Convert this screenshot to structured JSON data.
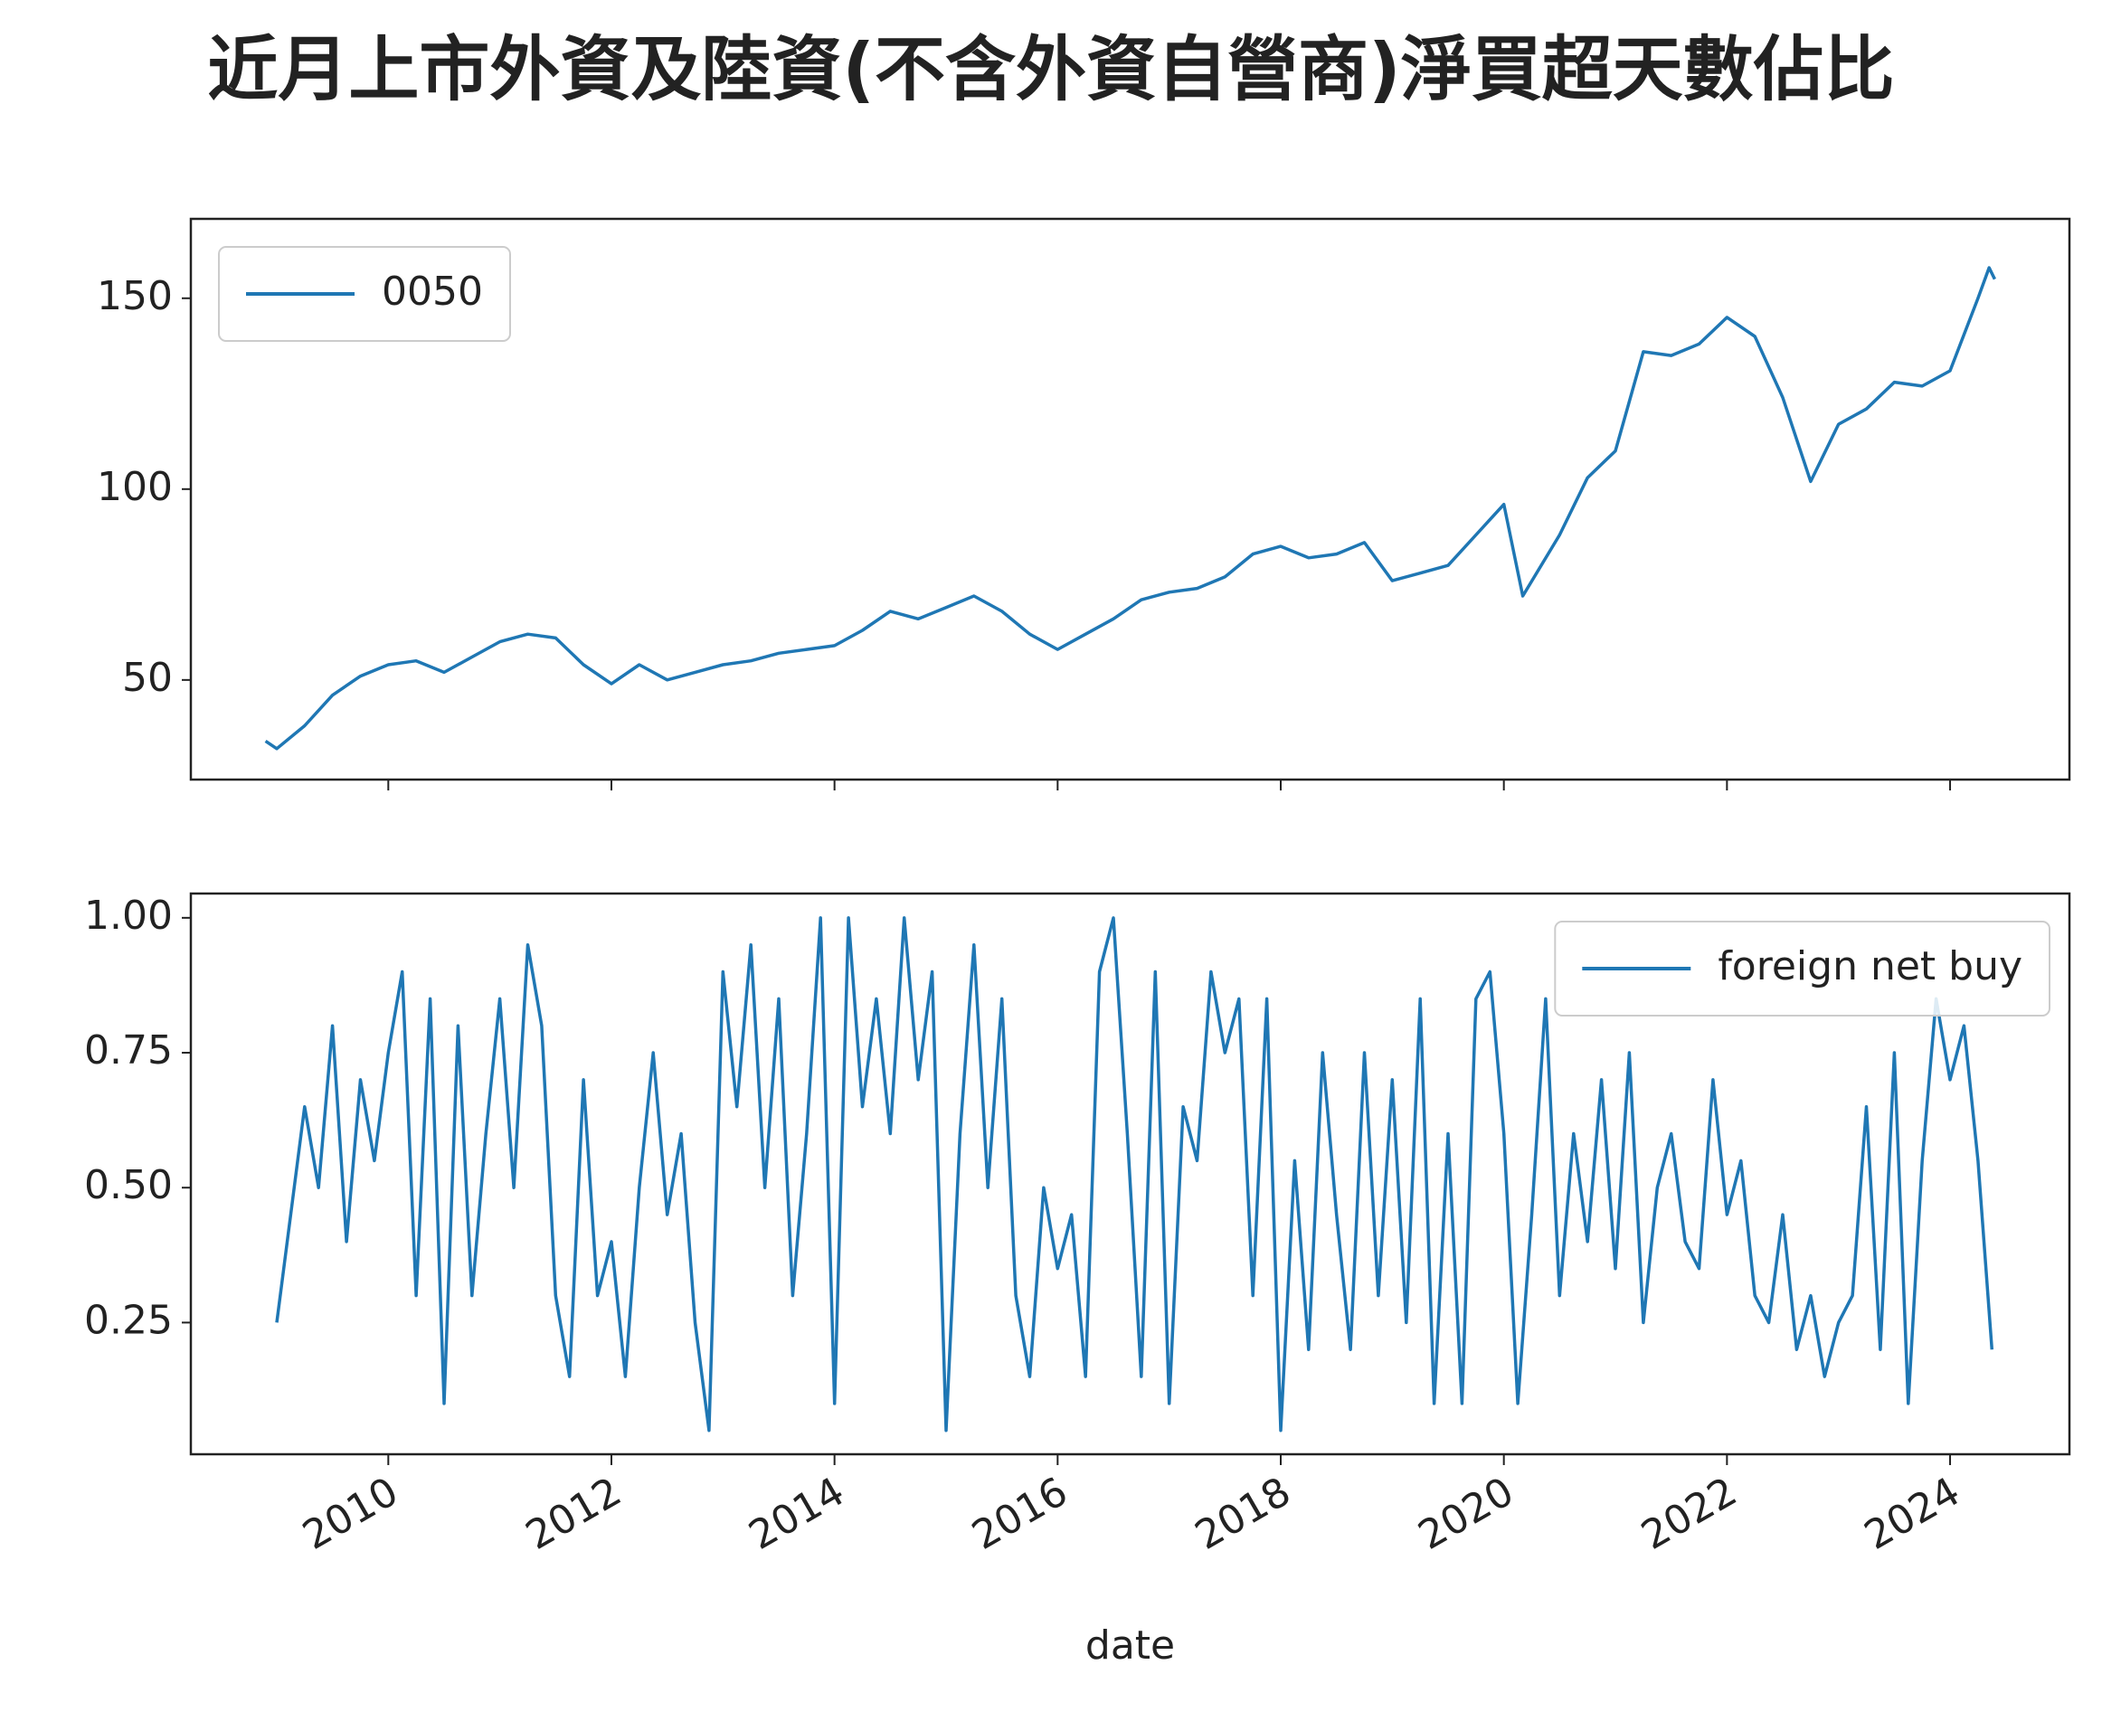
{
  "chart_data": [
    {
      "type": "line",
      "title": "近月上市外資及陸資(不含外資自營商)淨買超天數佔比",
      "x": [
        2008.9,
        2009.0,
        2009.25,
        2009.5,
        2009.75,
        2010.0,
        2010.25,
        2010.5,
        2010.75,
        2011.0,
        2011.25,
        2011.5,
        2011.75,
        2012.0,
        2012.25,
        2012.5,
        2012.75,
        2013.0,
        2013.25,
        2013.5,
        2013.75,
        2014.0,
        2014.25,
        2014.5,
        2014.75,
        2015.0,
        2015.25,
        2015.5,
        2015.75,
        2016.0,
        2016.25,
        2016.5,
        2016.75,
        2017.0,
        2017.25,
        2017.5,
        2017.75,
        2018.0,
        2018.25,
        2018.5,
        2018.75,
        2019.0,
        2019.25,
        2019.5,
        2019.75,
        2020.0,
        2020.17,
        2020.5,
        2020.75,
        2021.0,
        2021.25,
        2021.5,
        2021.75,
        2022.0,
        2022.25,
        2022.5,
        2022.75,
        2023.0,
        2023.25,
        2023.5,
        2023.75,
        2024.0,
        2024.25,
        2024.35,
        2024.4
      ],
      "series": [
        {
          "name": "0050",
          "color": "#1f77b4",
          "values": [
            34,
            32,
            38,
            46,
            51,
            54,
            55,
            52,
            56,
            60,
            62,
            61,
            54,
            49,
            54,
            50,
            52,
            54,
            55,
            57,
            58,
            59,
            63,
            68,
            66,
            69,
            72,
            68,
            62,
            58,
            62,
            66,
            71,
            73,
            74,
            77,
            83,
            85,
            82,
            83,
            86,
            76,
            78,
            80,
            88,
            96,
            72,
            88,
            103,
            110,
            136,
            135,
            138,
            145,
            140,
            124,
            102,
            117,
            121,
            128,
            127,
            131,
            150,
            158,
            155
          ]
        }
      ],
      "xlim": [
        2008.23,
        2025.07
      ],
      "xticks": [
        2010,
        2012,
        2014,
        2016,
        2018,
        2020,
        2022,
        2024
      ],
      "ylim": [
        23.9,
        170.8
      ],
      "yticks": [
        50,
        100,
        150
      ],
      "legend": "upper-left"
    },
    {
      "type": "line",
      "x_label": "date",
      "x": [
        2009.0,
        2009.125,
        2009.25,
        2009.375,
        2009.5,
        2009.625,
        2009.75,
        2009.875,
        2010.0,
        2010.125,
        2010.25,
        2010.375,
        2010.5,
        2010.625,
        2010.75,
        2010.875,
        2011.0,
        2011.125,
        2011.25,
        2011.375,
        2011.5,
        2011.625,
        2011.75,
        2011.875,
        2012.0,
        2012.125,
        2012.25,
        2012.375,
        2012.5,
        2012.625,
        2012.75,
        2012.875,
        2013.0,
        2013.125,
        2013.25,
        2013.375,
        2013.5,
        2013.625,
        2013.75,
        2013.875,
        2014.0,
        2014.125,
        2014.25,
        2014.375,
        2014.5,
        2014.625,
        2014.75,
        2014.875,
        2015.0,
        2015.125,
        2015.25,
        2015.375,
        2015.5,
        2015.625,
        2015.75,
        2015.875,
        2016.0,
        2016.125,
        2016.25,
        2016.375,
        2016.5,
        2016.625,
        2016.75,
        2016.875,
        2017.0,
        2017.125,
        2017.25,
        2017.375,
        2017.5,
        2017.625,
        2017.75,
        2017.875,
        2018.0,
        2018.125,
        2018.25,
        2018.375,
        2018.5,
        2018.625,
        2018.75,
        2018.875,
        2019.0,
        2019.125,
        2019.25,
        2019.375,
        2019.5,
        2019.625,
        2019.75,
        2019.875,
        2020.0,
        2020.125,
        2020.25,
        2020.375,
        2020.5,
        2020.625,
        2020.75,
        2020.875,
        2021.0,
        2021.125,
        2021.25,
        2021.375,
        2021.5,
        2021.625,
        2021.75,
        2021.875,
        2022.0,
        2022.125,
        2022.25,
        2022.375,
        2022.5,
        2022.625,
        2022.75,
        2022.875,
        2023.0,
        2023.125,
        2023.25,
        2023.375,
        2023.5,
        2023.625,
        2023.75,
        2023.875,
        2024.0,
        2024.125,
        2024.25,
        2024.375
      ],
      "series": [
        {
          "name": "foreign net buy",
          "color": "#1f77b4",
          "values": [
            0.25,
            0.45,
            0.65,
            0.5,
            0.8,
            0.4,
            0.7,
            0.55,
            0.75,
            0.9,
            0.3,
            0.85,
            0.1,
            0.8,
            0.3,
            0.6,
            0.85,
            0.5,
            0.95,
            0.8,
            0.3,
            0.15,
            0.7,
            0.3,
            0.4,
            0.15,
            0.5,
            0.75,
            0.45,
            0.6,
            0.25,
            0.05,
            0.9,
            0.65,
            0.95,
            0.5,
            0.85,
            0.3,
            0.6,
            1.0,
            0.1,
            1.0,
            0.65,
            0.85,
            0.6,
            1.0,
            0.7,
            0.9,
            0.05,
            0.6,
            0.95,
            0.5,
            0.85,
            0.3,
            0.15,
            0.5,
            0.35,
            0.45,
            0.15,
            0.9,
            1.0,
            0.6,
            0.15,
            0.9,
            0.1,
            0.65,
            0.55,
            0.9,
            0.75,
            0.85,
            0.3,
            0.85,
            0.05,
            0.55,
            0.2,
            0.75,
            0.45,
            0.2,
            0.75,
            0.3,
            0.7,
            0.25,
            0.85,
            0.1,
            0.6,
            0.1,
            0.85,
            0.9,
            0.6,
            0.1,
            0.45,
            0.85,
            0.3,
            0.6,
            0.4,
            0.7,
            0.35,
            0.75,
            0.25,
            0.5,
            0.6,
            0.4,
            0.35,
            0.7,
            0.45,
            0.55,
            0.3,
            0.25,
            0.45,
            0.2,
            0.3,
            0.15,
            0.25,
            0.3,
            0.65,
            0.2,
            0.75,
            0.1,
            0.55,
            0.85,
            0.7,
            0.8,
            0.55,
            0.2
          ]
        }
      ],
      "xlim": [
        2008.23,
        2025.07
      ],
      "xticks": [
        2010,
        2012,
        2014,
        2016,
        2018,
        2020,
        2022,
        2024
      ],
      "ylim": [
        0.006,
        1.045
      ],
      "yticks": [
        {
          "value": 0.25,
          "label": "0.25"
        },
        {
          "value": 0.5,
          "label": "0.50"
        },
        {
          "value": 0.75,
          "label": "0.75"
        },
        {
          "value": 1.0,
          "label": "1.00"
        }
      ],
      "legend": "upper-right"
    }
  ]
}
